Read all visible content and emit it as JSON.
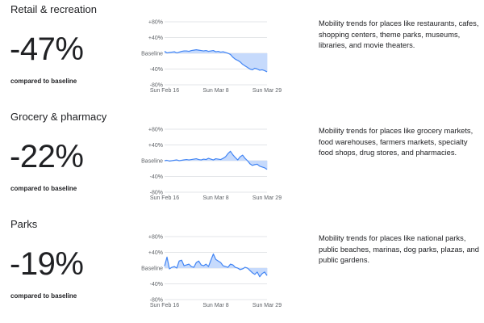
{
  "panels": [
    {
      "title": "Retail & recreation",
      "change": "-47%",
      "compare_label": "compared to baseline",
      "description": "Mobility trends for places like restaurants, cafes, shopping centers, theme parks, museums, libraries, and movie theaters."
    },
    {
      "title": "Grocery & pharmacy",
      "change": "-22%",
      "compare_label": "compared to baseline",
      "description": "Mobility trends for places like grocery markets, food warehouses, farmers markets, specialty food shops, drug stores, and pharmacies."
    },
    {
      "title": "Parks",
      "change": "-19%",
      "compare_label": "compared to baseline",
      "description": "Mobility trends for places like national parks, public beaches, marinas, dog parks, plazas, and public gardens."
    }
  ],
  "chart_data": [
    {
      "type": "area",
      "x": [
        "Feb 16",
        "Feb 17",
        "Feb 18",
        "Feb 19",
        "Feb 20",
        "Feb 21",
        "Feb 22",
        "Feb 23",
        "Feb 24",
        "Feb 25",
        "Feb 26",
        "Feb 27",
        "Feb 28",
        "Feb 29",
        "Mar 1",
        "Mar 2",
        "Mar 3",
        "Mar 4",
        "Mar 5",
        "Mar 6",
        "Mar 7",
        "Mar 8",
        "Mar 9",
        "Mar 10",
        "Mar 11",
        "Mar 12",
        "Mar 13",
        "Mar 14",
        "Mar 15",
        "Mar 16",
        "Mar 17",
        "Mar 18",
        "Mar 19",
        "Mar 20",
        "Mar 21",
        "Mar 22",
        "Mar 23",
        "Mar 24",
        "Mar 25",
        "Mar 26",
        "Mar 27",
        "Mar 28",
        "Mar 29"
      ],
      "y": [
        5,
        1,
        2,
        3,
        4,
        1,
        3,
        5,
        6,
        6,
        5,
        7,
        8,
        9,
        8,
        7,
        6,
        7,
        5,
        6,
        7,
        4,
        5,
        3,
        4,
        2,
        0,
        -3,
        -10,
        -15,
        -18,
        -22,
        -28,
        -32,
        -36,
        -40,
        -42,
        -38,
        -40,
        -43,
        -42,
        -44,
        -47
      ],
      "xticks": [
        "Sun Feb 16",
        "Sun Mar 8",
        "Sun Mar 29"
      ],
      "yticks": [
        "+80%",
        "+40%",
        "Baseline",
        "-40%",
        "-80%"
      ],
      "ylim": [
        -80,
        80
      ]
    },
    {
      "type": "area",
      "x": [
        "Feb 16",
        "Feb 17",
        "Feb 18",
        "Feb 19",
        "Feb 20",
        "Feb 21",
        "Feb 22",
        "Feb 23",
        "Feb 24",
        "Feb 25",
        "Feb 26",
        "Feb 27",
        "Feb 28",
        "Feb 29",
        "Mar 1",
        "Mar 2",
        "Mar 3",
        "Mar 4",
        "Mar 5",
        "Mar 6",
        "Mar 7",
        "Mar 8",
        "Mar 9",
        "Mar 10",
        "Mar 11",
        "Mar 12",
        "Mar 13",
        "Mar 14",
        "Mar 15",
        "Mar 16",
        "Mar 17",
        "Mar 18",
        "Mar 19",
        "Mar 20",
        "Mar 21",
        "Mar 22",
        "Mar 23",
        "Mar 24",
        "Mar 25",
        "Mar 26",
        "Mar 27",
        "Mar 28",
        "Mar 29"
      ],
      "y": [
        0,
        1,
        -1,
        0,
        1,
        2,
        0,
        1,
        2,
        3,
        2,
        3,
        4,
        5,
        3,
        2,
        4,
        3,
        6,
        4,
        2,
        5,
        4,
        3,
        6,
        10,
        18,
        24,
        15,
        8,
        2,
        10,
        14,
        6,
        0,
        -8,
        -12,
        -10,
        -9,
        -14,
        -16,
        -18,
        -22
      ],
      "xticks": [
        "Sun Feb 16",
        "Sun Mar 8",
        "Sun Mar 29"
      ],
      "yticks": [
        "+80%",
        "+40%",
        "Baseline",
        "-40%",
        "-80%"
      ],
      "ylim": [
        -80,
        80
      ]
    },
    {
      "type": "area",
      "x": [
        "Feb 16",
        "Feb 17",
        "Feb 18",
        "Feb 19",
        "Feb 20",
        "Feb 21",
        "Feb 22",
        "Feb 23",
        "Feb 24",
        "Feb 25",
        "Feb 26",
        "Feb 27",
        "Feb 28",
        "Feb 29",
        "Mar 1",
        "Mar 2",
        "Mar 3",
        "Mar 4",
        "Mar 5",
        "Mar 6",
        "Mar 7",
        "Mar 8",
        "Mar 9",
        "Mar 10",
        "Mar 11",
        "Mar 12",
        "Mar 13",
        "Mar 14",
        "Mar 15",
        "Mar 16",
        "Mar 17",
        "Mar 18",
        "Mar 19",
        "Mar 20",
        "Mar 21",
        "Mar 22",
        "Mar 23",
        "Mar 24",
        "Mar 25",
        "Mar 26",
        "Mar 27",
        "Mar 28",
        "Mar 29"
      ],
      "y": [
        5,
        28,
        -2,
        2,
        4,
        0,
        18,
        20,
        6,
        8,
        10,
        4,
        2,
        14,
        18,
        8,
        6,
        10,
        4,
        20,
        36,
        22,
        18,
        14,
        6,
        4,
        2,
        10,
        8,
        2,
        0,
        -4,
        -2,
        2,
        0,
        -6,
        -12,
        -16,
        -10,
        -22,
        -14,
        -10,
        -19
      ],
      "xticks": [
        "Sun Feb 16",
        "Sun Mar 8",
        "Sun Mar 29"
      ],
      "yticks": [
        "+80%",
        "+40%",
        "Baseline",
        "-40%",
        "-80%"
      ],
      "ylim": [
        -80,
        80
      ]
    }
  ],
  "colors": {
    "line": "#4285f4",
    "fill": "#c6dafc",
    "grid": "#dadce0",
    "text": "#202124",
    "tick": "#5f6368"
  }
}
